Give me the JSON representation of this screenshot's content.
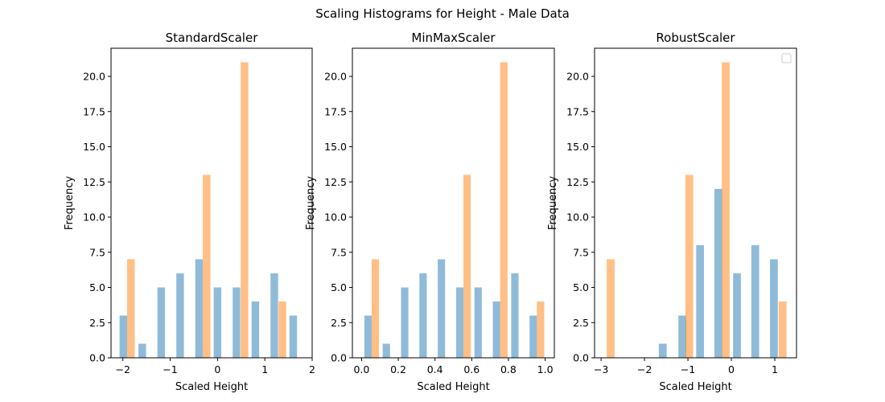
{
  "figure": {
    "suptitle": "Scaling Histograms for Height - Male Data"
  },
  "chart_data": [
    {
      "type": "bar",
      "title": "StandardScaler",
      "xlabel": "Scaled Height",
      "ylabel": "Frequency",
      "xlim": [
        -2.25,
        2.0
      ],
      "ylim": [
        0,
        22
      ],
      "xticks": [
        -2,
        -1,
        0,
        1,
        2
      ],
      "xtick_labels": [
        "−2",
        "−1",
        "0",
        "1",
        "2"
      ],
      "yticks": [
        0,
        2.5,
        5,
        7.5,
        10,
        12.5,
        15,
        17.5,
        20
      ],
      "ytick_labels": [
        "0.0",
        "2.5",
        "5.0",
        "7.5",
        "10.0",
        "12.5",
        "15.0",
        "17.5",
        "20.0"
      ],
      "legend": false,
      "bar_width": 0.16,
      "series": [
        {
          "color": "#1f77b4",
          "opacity": 0.5,
          "bars": [
            {
              "x": -1.99,
              "value": 3
            },
            {
              "x": -1.59,
              "value": 1
            },
            {
              "x": -1.19,
              "value": 5
            },
            {
              "x": -0.79,
              "value": 6
            },
            {
              "x": -0.39,
              "value": 7
            },
            {
              "x": 0.0,
              "value": 5
            },
            {
              "x": 0.4,
              "value": 5
            },
            {
              "x": 0.8,
              "value": 4
            },
            {
              "x": 1.2,
              "value": 6
            },
            {
              "x": 1.6,
              "value": 3
            }
          ]
        },
        {
          "color": "#ff7f0e",
          "opacity": 0.5,
          "bars": [
            {
              "x": -1.83,
              "value": 7
            },
            {
              "x": -0.23,
              "value": 13
            },
            {
              "x": 0.57,
              "value": 21
            },
            {
              "x": 1.37,
              "value": 4
            }
          ]
        }
      ]
    },
    {
      "type": "bar",
      "title": "MinMaxScaler",
      "xlabel": "Scaled Height",
      "ylabel": "Frequency",
      "xlim": [
        -0.05,
        1.05
      ],
      "ylim": [
        0,
        22
      ],
      "xticks": [
        0.0,
        0.2,
        0.4,
        0.6,
        0.8,
        1.0
      ],
      "xtick_labels": [
        "0.0",
        "0.2",
        "0.4",
        "0.6",
        "0.8",
        "1.0"
      ],
      "yticks": [
        0,
        2.5,
        5,
        7.5,
        10,
        12.5,
        15,
        17.5,
        20
      ],
      "ytick_labels": [
        "0.0",
        "2.5",
        "5.0",
        "7.5",
        "10.0",
        "12.5",
        "15.0",
        "17.5",
        "20.0"
      ],
      "legend": false,
      "bar_width": 0.04,
      "series": [
        {
          "color": "#1f77b4",
          "opacity": 0.5,
          "bars": [
            {
              "x": 0.035,
              "value": 3
            },
            {
              "x": 0.135,
              "value": 1
            },
            {
              "x": 0.235,
              "value": 5
            },
            {
              "x": 0.335,
              "value": 6
            },
            {
              "x": 0.435,
              "value": 7
            },
            {
              "x": 0.535,
              "value": 5
            },
            {
              "x": 0.635,
              "value": 5
            },
            {
              "x": 0.735,
              "value": 4
            },
            {
              "x": 0.835,
              "value": 6
            },
            {
              "x": 0.935,
              "value": 3
            }
          ]
        },
        {
          "color": "#ff7f0e",
          "opacity": 0.5,
          "bars": [
            {
              "x": 0.075,
              "value": 7
            },
            {
              "x": 0.575,
              "value": 13
            },
            {
              "x": 0.775,
              "value": 21
            },
            {
              "x": 0.975,
              "value": 4
            }
          ]
        }
      ]
    },
    {
      "type": "bar",
      "title": "RobustScaler",
      "xlabel": "Scaled Height",
      "ylabel": "Frequency",
      "xlim": [
        -3.15,
        1.5
      ],
      "ylim": [
        0,
        22
      ],
      "xticks": [
        -3,
        -2,
        -1,
        0,
        1
      ],
      "xtick_labels": [
        "−3",
        "−2",
        "−1",
        "0",
        "1"
      ],
      "yticks": [
        0,
        2.5,
        5,
        7.5,
        10,
        12.5,
        15,
        17.5,
        20
      ],
      "ytick_labels": [
        "0.0",
        "2.5",
        "5.0",
        "7.5",
        "10.0",
        "12.5",
        "15.0",
        "17.5",
        "20.0"
      ],
      "legend": true,
      "legend_position": "upper right",
      "bar_width": 0.18,
      "series": [
        {
          "color": "#1f77b4",
          "opacity": 0.5,
          "bars": [
            {
              "x": -1.58,
              "value": 1
            },
            {
              "x": -1.13,
              "value": 3
            },
            {
              "x": -0.72,
              "value": 8
            },
            {
              "x": -0.3,
              "value": 12
            },
            {
              "x": 0.13,
              "value": 6
            },
            {
              "x": 0.55,
              "value": 8
            },
            {
              "x": 0.98,
              "value": 7
            }
          ]
        },
        {
          "color": "#ff7f0e",
          "opacity": 0.5,
          "bars": [
            {
              "x": -2.78,
              "value": 7
            },
            {
              "x": -0.97,
              "value": 13
            },
            {
              "x": -0.13,
              "value": 21
            },
            {
              "x": 1.18,
              "value": 4
            }
          ]
        }
      ]
    }
  ]
}
